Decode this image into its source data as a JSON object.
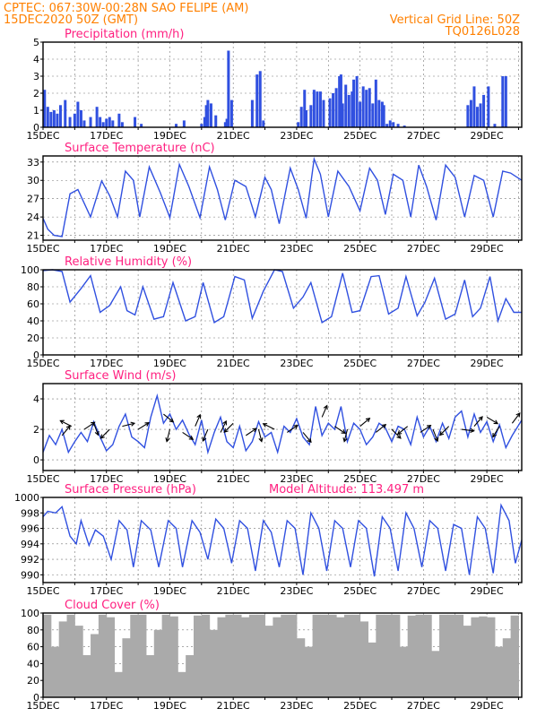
{
  "header": {
    "line1_left": "CPTEC:  067:30W-00:28N  SAO FELIPE (AM)",
    "line2_left": "15DEC2020 50Z (GMT)",
    "line1_right": "Vertical Grid Line: 50Z",
    "line2_right": "TQ0126L028"
  },
  "x_tick_labels": [
    "15DEC",
    "17DEC",
    "19DEC",
    "21DEC",
    "23DEC",
    "25DEC",
    "27DEC",
    "29DEC"
  ],
  "colors": {
    "header": "#ff8000",
    "title": "#ff2080",
    "series": "#3050e0",
    "cloud": "#aaaaaa",
    "arrow": "#000000"
  },
  "chart_data": [
    {
      "type": "bar",
      "title": "Precipitation (mm/h)",
      "x_unit": "days since 15DEC 00Z",
      "xlim": [
        0,
        15.1
      ],
      "ylim": [
        0,
        5
      ],
      "yticks": [
        0,
        1,
        2,
        3,
        4,
        5
      ],
      "x": [
        0.05,
        0.15,
        0.25,
        0.35,
        0.45,
        0.55,
        0.7,
        0.85,
        1.0,
        1.1,
        1.2,
        1.3,
        1.5,
        1.7,
        1.8,
        1.9,
        2.0,
        2.1,
        2.2,
        2.4,
        2.5,
        2.9,
        3.1,
        4.2,
        4.45,
        5.0,
        5.1,
        5.15,
        5.2,
        5.3,
        5.45,
        5.75,
        5.8,
        5.85,
        5.95,
        6.6,
        6.75,
        6.85,
        6.95,
        8.05,
        8.15,
        8.25,
        8.3,
        8.45,
        8.55,
        8.65,
        8.75,
        8.85,
        9.05,
        9.15,
        9.25,
        9.35,
        9.4,
        9.45,
        9.55,
        9.65,
        9.75,
        9.8,
        9.9,
        10.0,
        10.1,
        10.2,
        10.3,
        10.4,
        10.5,
        10.6,
        10.7,
        10.75,
        10.85,
        10.95,
        11.05,
        11.2,
        11.4,
        13.4,
        13.5,
        13.6,
        13.7,
        13.8,
        13.9,
        14.05,
        14.25,
        14.5,
        14.6
      ],
      "values": [
        2.2,
        1.2,
        0.9,
        1.0,
        0.8,
        1.3,
        1.6,
        0.6,
        0.8,
        1.5,
        1.0,
        0.4,
        0.6,
        1.2,
        0.6,
        0.3,
        0.5,
        0.6,
        0.4,
        0.8,
        0.3,
        0.6,
        0.2,
        0.2,
        0.4,
        0.2,
        0.6,
        1.3,
        1.6,
        1.4,
        0.7,
        0.3,
        0.5,
        4.5,
        1.6,
        1.6,
        3.1,
        3.3,
        0.4,
        0.3,
        1.2,
        2.2,
        1.0,
        1.3,
        2.2,
        2.1,
        2.1,
        1.6,
        1.7,
        2.0,
        2.3,
        3.0,
        3.1,
        1.4,
        2.5,
        1.9,
        2.1,
        2.8,
        3.0,
        1.5,
        2.4,
        2.2,
        2.3,
        1.4,
        2.8,
        1.6,
        1.5,
        1.3,
        0.2,
        0.4,
        0.3,
        0.2,
        0.1,
        1.3,
        1.6,
        2.4,
        1.2,
        1.4,
        1.9,
        2.4,
        0.2,
        3.0,
        3.0
      ]
    },
    {
      "type": "line",
      "title": "Surface Temperature (nC)",
      "x_unit": "days since 15DEC 00Z",
      "xlim": [
        0,
        15.1
      ],
      "ylim": [
        20.2,
        34.0
      ],
      "yticks": [
        21,
        24,
        27,
        30,
        33
      ],
      "x": [
        0,
        0.15,
        0.35,
        0.6,
        0.85,
        1.1,
        1.5,
        1.85,
        2.1,
        2.35,
        2.6,
        2.85,
        3.05,
        3.35,
        3.7,
        4.0,
        4.3,
        4.6,
        4.95,
        5.25,
        5.5,
        5.75,
        6.05,
        6.4,
        6.7,
        7.0,
        7.2,
        7.45,
        7.8,
        8.05,
        8.3,
        8.55,
        8.75,
        9.0,
        9.3,
        9.65,
        10.0,
        10.3,
        10.55,
        10.8,
        11.05,
        11.35,
        11.6,
        11.85,
        12.1,
        12.4,
        12.7,
        13.0,
        13.3,
        13.6,
        13.9,
        14.2,
        14.5,
        14.75,
        15.1
      ],
      "values": [
        23.8,
        22.0,
        21.0,
        20.8,
        27.8,
        28.5,
        24.0,
        29.9,
        27.5,
        24.0,
        31.5,
        30.0,
        24.0,
        32.2,
        28.0,
        23.9,
        32.6,
        29.0,
        23.9,
        32.2,
        28.5,
        23.5,
        30.0,
        29.0,
        24.0,
        30.5,
        28.5,
        22.9,
        32.0,
        28.5,
        23.8,
        33.5,
        31.0,
        24.0,
        31.5,
        29.0,
        25.0,
        32.0,
        30.0,
        24.4,
        31.0,
        30.0,
        24.0,
        32.5,
        29.0,
        23.5,
        32.5,
        30.5,
        24.0,
        30.8,
        30.0,
        24.0,
        31.5,
        31.2,
        30.0
      ]
    },
    {
      "type": "line",
      "title": "Relative Humidity (%)",
      "x_unit": "days since 15DEC 00Z",
      "xlim": [
        0,
        15.1
      ],
      "ylim": [
        0,
        100
      ],
      "yticks": [
        0,
        20,
        40,
        60,
        80,
        100
      ],
      "x": [
        0,
        0.3,
        0.6,
        0.85,
        1.2,
        1.5,
        1.8,
        2.1,
        2.45,
        2.65,
        2.9,
        3.15,
        3.5,
        3.8,
        4.1,
        4.5,
        4.8,
        5.05,
        5.4,
        5.7,
        6.05,
        6.35,
        6.6,
        6.95,
        7.3,
        7.55,
        7.9,
        8.2,
        8.45,
        8.8,
        9.1,
        9.45,
        9.75,
        10.0,
        10.35,
        10.6,
        10.9,
        11.2,
        11.45,
        11.8,
        12.05,
        12.35,
        12.7,
        13.0,
        13.3,
        13.55,
        13.8,
        14.1,
        14.35,
        14.6,
        14.85,
        15.1
      ],
      "values": [
        99,
        100,
        98,
        62,
        78,
        93,
        50,
        58,
        80,
        52,
        47,
        80,
        42,
        45,
        85,
        40,
        45,
        85,
        38,
        45,
        92,
        88,
        43,
        75,
        100,
        98,
        55,
        68,
        85,
        38,
        45,
        96,
        50,
        52,
        92,
        93,
        48,
        55,
        92,
        46,
        62,
        90,
        42,
        48,
        88,
        45,
        55,
        92,
        40,
        66,
        50,
        50
      ]
    },
    {
      "type": "line",
      "title": "Surface Wind (m/s)",
      "x_unit": "days since 15DEC 00Z",
      "xlim": [
        0,
        15.1
      ],
      "ylim": [
        -0.7,
        5.0
      ],
      "yticks": [
        0,
        2,
        4
      ],
      "x": [
        0,
        0.2,
        0.4,
        0.6,
        0.8,
        1.0,
        1.2,
        1.4,
        1.6,
        1.8,
        2.0,
        2.2,
        2.4,
        2.6,
        2.8,
        3.0,
        3.2,
        3.4,
        3.6,
        3.8,
        4.0,
        4.2,
        4.4,
        4.6,
        4.8,
        5.0,
        5.2,
        5.4,
        5.6,
        5.8,
        6.0,
        6.2,
        6.4,
        6.6,
        6.8,
        7.0,
        7.2,
        7.4,
        7.6,
        7.8,
        8.0,
        8.2,
        8.4,
        8.6,
        8.8,
        9.0,
        9.2,
        9.4,
        9.6,
        9.8,
        10.0,
        10.2,
        10.4,
        10.6,
        10.8,
        11.0,
        11.2,
        11.4,
        11.6,
        11.8,
        12.0,
        12.2,
        12.4,
        12.6,
        12.8,
        13.0,
        13.2,
        13.4,
        13.6,
        13.8,
        14.0,
        14.2,
        14.4,
        14.6,
        14.8,
        15.1
      ],
      "values": [
        0.5,
        1.6,
        1.0,
        2.0,
        0.5,
        1.2,
        1.8,
        1.2,
        2.5,
        1.5,
        0.6,
        1.0,
        2.2,
        3.0,
        1.5,
        1.2,
        0.8,
        2.8,
        4.2,
        2.4,
        3.0,
        2.0,
        2.6,
        1.7,
        1.0,
        2.6,
        0.5,
        1.8,
        2.8,
        1.2,
        0.8,
        2.2,
        0.6,
        1.2,
        2.5,
        1.5,
        1.8,
        0.5,
        2.2,
        1.8,
        2.7,
        1.5,
        1.0,
        3.5,
        1.6,
        2.4,
        2.0,
        3.5,
        1.2,
        2.4,
        2.0,
        1.0,
        1.5,
        2.4,
        2.1,
        1.2,
        2.2,
        2.0,
        1.0,
        2.8,
        1.5,
        2.2,
        1.2,
        2.4,
        1.4,
        2.8,
        3.2,
        1.5,
        3.0,
        1.8,
        2.5,
        1.2,
        2.3,
        0.8,
        1.6,
        2.6
      ]
    },
    {
      "type": "line",
      "title": "Surface Pressure (hPa)",
      "annotation": "Model Altitude: 113.497 m",
      "x_unit": "days since 15DEC 00Z",
      "xlim": [
        0,
        15.1
      ],
      "ylim": [
        989,
        1000
      ],
      "yticks": [
        990,
        992,
        994,
        996,
        998,
        1000
      ],
      "x": [
        0,
        0.15,
        0.4,
        0.6,
        0.85,
        1.05,
        1.2,
        1.45,
        1.65,
        1.9,
        2.15,
        2.4,
        2.65,
        2.85,
        3.1,
        3.4,
        3.65,
        3.95,
        4.2,
        4.4,
        4.7,
        4.95,
        5.2,
        5.45,
        5.7,
        5.95,
        6.2,
        6.45,
        6.7,
        6.95,
        7.2,
        7.45,
        7.7,
        7.95,
        8.2,
        8.45,
        8.7,
        8.95,
        9.2,
        9.45,
        9.7,
        9.95,
        10.2,
        10.45,
        10.7,
        10.95,
        11.2,
        11.45,
        11.7,
        11.95,
        12.2,
        12.45,
        12.7,
        12.95,
        13.2,
        13.45,
        13.7,
        13.95,
        14.2,
        14.45,
        14.7,
        14.9,
        15.1
      ],
      "values": [
        997.5,
        998.2,
        998.0,
        998.8,
        995.0,
        994.0,
        997.0,
        993.8,
        995.8,
        995.0,
        992.0,
        997.0,
        995.8,
        991.0,
        997.0,
        995.8,
        991.0,
        997.0,
        996.0,
        991.0,
        997.0,
        995.5,
        992.0,
        997.2,
        996.0,
        991.5,
        997.0,
        996.0,
        990.5,
        997.0,
        995.5,
        991.0,
        997.0,
        996.0,
        990.0,
        998.0,
        996.0,
        990.5,
        997.0,
        996.0,
        991.0,
        997.0,
        996.0,
        989.8,
        997.5,
        996.0,
        990.5,
        998.0,
        996.0,
        991.0,
        997.0,
        996.0,
        990.5,
        996.5,
        996.0,
        990.0,
        997.5,
        996.0,
        990.2,
        999.0,
        997.0,
        991.5,
        994.5
      ]
    },
    {
      "type": "bar",
      "title": "Cloud Cover (%)",
      "x_unit": "days since 15DEC 00Z",
      "xlim": [
        0,
        15.1
      ],
      "ylim": [
        0,
        100
      ],
      "yticks": [
        0,
        20,
        40,
        60,
        80,
        100
      ],
      "x": [
        0,
        0.25,
        0.5,
        0.75,
        1.0,
        1.25,
        1.5,
        1.75,
        2.0,
        2.25,
        2.5,
        2.75,
        3.0,
        3.25,
        3.5,
        3.75,
        4.0,
        4.25,
        4.5,
        4.75,
        5.0,
        5.25,
        5.5,
        5.75,
        6.0,
        6.25,
        6.5,
        6.75,
        7.0,
        7.25,
        7.5,
        7.75,
        8.0,
        8.25,
        8.5,
        8.75,
        9.0,
        9.25,
        9.5,
        9.75,
        10.0,
        10.25,
        10.5,
        10.75,
        11.0,
        11.25,
        11.5,
        11.75,
        12.0,
        12.25,
        12.5,
        12.75,
        13.0,
        13.25,
        13.5,
        13.75,
        14.0,
        14.25,
        14.5,
        14.75
      ],
      "values": [
        98,
        60,
        90,
        98,
        85,
        50,
        75,
        98,
        95,
        30,
        70,
        98,
        98,
        50,
        80,
        98,
        96,
        30,
        50,
        97,
        98,
        80,
        95,
        98,
        98,
        95,
        98,
        98,
        85,
        95,
        98,
        98,
        70,
        60,
        98,
        98,
        98,
        95,
        98,
        98,
        90,
        65,
        98,
        98,
        98,
        60,
        97,
        98,
        98,
        55,
        98,
        98,
        98,
        85,
        95,
        96,
        95,
        60,
        70,
        97
      ]
    },
    {
      "type": "vector",
      "title": "Surface Wind arrows",
      "x": [
        0.6,
        0.9,
        1.3,
        1.6,
        2.1,
        2.5,
        3.0,
        3.8,
        4.0,
        4.4,
        4.8,
        5.2,
        5.6,
        6.0,
        6.4,
        6.8,
        7.3,
        7.7,
        8.2,
        8.8,
        9.2,
        9.6,
        10.0,
        10.5,
        11.0,
        11.5,
        11.9,
        12.3,
        12.8,
        13.2,
        13.6,
        14.0,
        14.4,
        14.8
      ],
      "values": [
        1.6,
        2.2,
        2.0,
        2.4,
        2.0,
        2.2,
        2.0,
        3.0,
        2.0,
        1.8,
        2.2,
        2.0,
        1.8,
        2.4,
        1.6,
        2.0,
        2.0,
        1.8,
        1.8,
        2.8,
        2.2,
        2.0,
        2.2,
        1.8,
        2.0,
        2.2,
        1.8,
        2.0,
        2.2,
        2.0,
        2.2,
        2.8,
        2.2,
        2.4
      ],
      "u": [
        0.5,
        -0.6,
        0.6,
        0.3,
        -0.5,
        0.8,
        0.8,
        1.0,
        -0.2,
        0.6,
        0.3,
        -0.3,
        0.4,
        -0.5,
        0.6,
        0.2,
        -0.6,
        0.6,
        0.5,
        0.3,
        0.6,
        -0.2,
        0.6,
        0.5,
        0.4,
        -0.5,
        0.6,
        0.2,
        -0.4,
        0.8,
        0.6,
        0.5,
        -0.5,
        0.6
      ],
      "v": [
        0.6,
        0.3,
        0.4,
        -0.8,
        -0.5,
        0.2,
        0.5,
        -0.8,
        -0.8,
        -0.4,
        0.7,
        -0.7,
        0.8,
        -0.5,
        0.4,
        -0.8,
        0.3,
        0.4,
        -0.6,
        0.7,
        -0.4,
        -0.8,
        0.5,
        0.4,
        -0.4,
        -0.4,
        0.4,
        -0.5,
        -0.4,
        -0.1,
        0.7,
        -0.3,
        -0.8,
        0.8
      ]
    }
  ]
}
